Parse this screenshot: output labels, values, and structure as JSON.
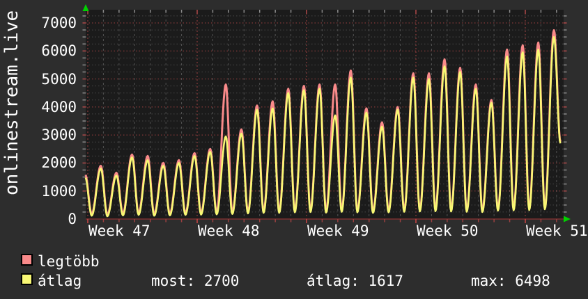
{
  "chart_data": {
    "type": "line",
    "title": "onlinestream.live",
    "x_tick_labels": [
      "Week 47",
      "Week 48",
      "Week 49",
      "Week 50",
      "Week 51"
    ],
    "y_tick_labels": [
      "0",
      "1000",
      "2000",
      "3000",
      "4000",
      "5000",
      "6000",
      "7000"
    ],
    "ylim": [
      0,
      7470
    ],
    "y_major_step": 1000,
    "y_minor_step": 250,
    "x_unit": "day",
    "days_visible": 31,
    "weeks_visible": 5,
    "grid": true,
    "legend_position": "bottom-left",
    "peak_hour": 20,
    "valley_hour": 6,
    "series": [
      {
        "name": "legtöbb",
        "color": "#f98a8a",
        "daily_peak_values": [
          1600,
          1900,
          1650,
          2300,
          2250,
          2000,
          2100,
          2350,
          2500,
          4800,
          3200,
          4050,
          4200,
          4650,
          4750,
          4800,
          4800,
          5300,
          3950,
          3450,
          4000,
          5200,
          5200,
          5700,
          5400,
          4800,
          4250,
          6050,
          6200,
          6300,
          6740
        ],
        "end_value": 2760
      },
      {
        "name": "átlag",
        "color": "#f9f874",
        "daily_peak_values": [
          1500,
          1800,
          1550,
          2200,
          2100,
          1900,
          2000,
          2250,
          2400,
          2950,
          3050,
          3900,
          3950,
          4500,
          4600,
          4650,
          3700,
          5050,
          3800,
          3300,
          3900,
          5050,
          5000,
          5450,
          5250,
          4650,
          4150,
          5800,
          5950,
          6050,
          6498
        ],
        "end_value": 2700
      }
    ],
    "daily_valley_values": [
      100,
      120,
      100,
      130,
      150,
      120,
      130,
      150,
      160,
      170,
      180,
      200,
      220,
      220,
      240,
      250,
      230,
      260,
      240,
      220,
      240,
      260,
      270,
      280,
      270,
      260,
      250,
      300,
      310,
      320,
      350
    ],
    "stats_row": [
      "most: 2700",
      "átlag: 1617",
      "max: 6498"
    ],
    "colors": {
      "outer_bg": "#2d2d2d",
      "plot_bg": "#1b1b1b",
      "text": "#ffffff",
      "minor_grid_gray": "#474747",
      "day_grid_gray": "#525252",
      "major_grid_red": "#9e4040",
      "zero_line_red": "#7d3030",
      "tick_gray": "#8a8a8a",
      "tick_red": "#b04a4a",
      "bottom_tick_red": "#9a4040",
      "arrow_green": "#00d200"
    }
  }
}
